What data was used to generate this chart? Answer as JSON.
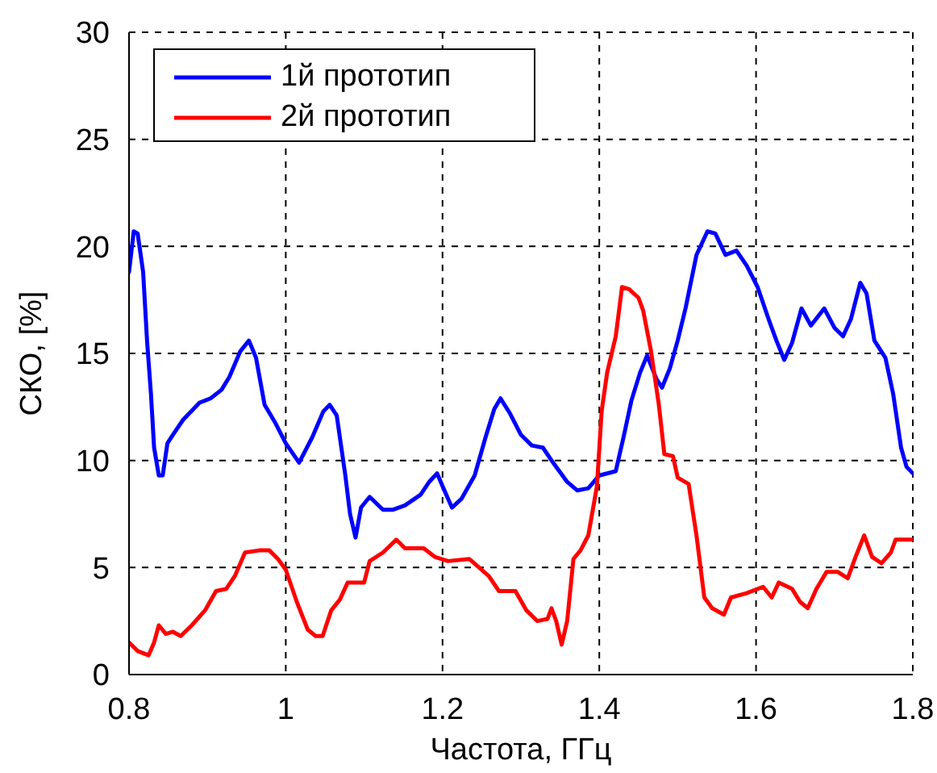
{
  "chart_data": {
    "type": "line",
    "xlabel": "Частота, ГГц",
    "ylabel": "СКО, [%]",
    "xlim": [
      0.8,
      1.8
    ],
    "ylim": [
      0,
      30
    ],
    "xticks": [
      0.8,
      1,
      1.2,
      1.4,
      1.6,
      1.8
    ],
    "yticks": [
      0,
      5,
      10,
      15,
      20,
      25,
      30
    ],
    "grid": true,
    "legend": "top left",
    "marker": "none",
    "line_style": "solid",
    "series": [
      {
        "name": "1й прототип",
        "color": "#0000ff",
        "x": [
          0.8,
          0.806,
          0.811,
          0.818,
          0.823,
          0.828,
          0.832,
          0.838,
          0.843,
          0.849,
          0.856,
          0.869,
          0.89,
          0.904,
          0.918,
          0.928,
          0.942,
          0.953,
          0.962,
          0.973,
          0.986,
          1.0,
          1.017,
          1.034,
          1.048,
          1.056,
          1.065,
          1.076,
          1.082,
          1.089,
          1.096,
          1.107,
          1.124,
          1.137,
          1.152,
          1.172,
          1.183,
          1.193,
          1.2,
          1.212,
          1.224,
          1.241,
          1.255,
          1.266,
          1.274,
          1.286,
          1.3,
          1.314,
          1.328,
          1.341,
          1.359,
          1.372,
          1.386,
          1.4,
          1.421,
          1.431,
          1.441,
          1.452,
          1.461,
          1.473,
          1.48,
          1.49,
          1.5,
          1.51,
          1.524,
          1.538,
          1.548,
          1.561,
          1.575,
          1.588,
          1.602,
          1.616,
          1.626,
          1.636,
          1.646,
          1.658,
          1.67,
          1.687,
          1.7,
          1.711,
          1.721,
          1.733,
          1.741,
          1.751,
          1.765,
          1.775,
          1.785,
          1.792,
          1.8
        ],
        "values": [
          18.8,
          20.7,
          20.6,
          18.8,
          15.6,
          13.1,
          10.6,
          9.3,
          9.3,
          10.8,
          11.2,
          11.9,
          12.7,
          12.9,
          13.3,
          13.9,
          15.1,
          15.6,
          14.8,
          12.6,
          11.8,
          10.8,
          9.9,
          11.1,
          12.3,
          12.6,
          12.1,
          9.3,
          7.5,
          6.4,
          7.8,
          8.3,
          7.7,
          7.7,
          7.9,
          8.4,
          9.0,
          9.4,
          8.8,
          7.8,
          8.2,
          9.3,
          11.1,
          12.4,
          12.9,
          12.2,
          11.2,
          10.7,
          10.6,
          9.9,
          9.0,
          8.6,
          8.7,
          9.3,
          9.5,
          11.1,
          12.8,
          14.1,
          14.9,
          13.8,
          13.4,
          14.3,
          15.6,
          17.1,
          19.6,
          20.7,
          20.6,
          19.6,
          19.8,
          19.1,
          18.1,
          16.6,
          15.6,
          14.7,
          15.5,
          17.1,
          16.3,
          17.1,
          16.2,
          15.8,
          16.6,
          18.3,
          17.8,
          15.6,
          14.8,
          13.1,
          10.6,
          9.7,
          9.4
        ]
      },
      {
        "name": "2й прототип",
        "color": "#ff0000",
        "x": [
          0.8,
          0.811,
          0.825,
          0.832,
          0.838,
          0.847,
          0.856,
          0.866,
          0.88,
          0.897,
          0.911,
          0.924,
          0.935,
          0.948,
          0.966,
          0.979,
          0.99,
          1.0,
          1.014,
          1.028,
          1.038,
          1.047,
          1.058,
          1.069,
          1.079,
          1.1,
          1.107,
          1.124,
          1.141,
          1.152,
          1.176,
          1.19,
          1.207,
          1.234,
          1.259,
          1.272,
          1.293,
          1.307,
          1.321,
          1.334,
          1.339,
          1.345,
          1.352,
          1.359,
          1.367,
          1.376,
          1.386,
          1.397,
          1.403,
          1.41,
          1.421,
          1.429,
          1.438,
          1.45,
          1.456,
          1.466,
          1.476,
          1.483,
          1.494,
          1.5,
          1.514,
          1.524,
          1.534,
          1.544,
          1.559,
          1.568,
          1.588,
          1.609,
          1.62,
          1.629,
          1.646,
          1.656,
          1.666,
          1.677,
          1.69,
          1.704,
          1.717,
          1.727,
          1.738,
          1.748,
          1.76,
          1.772,
          1.778,
          1.8
        ],
        "values": [
          1.5,
          1.1,
          0.9,
          1.5,
          2.3,
          1.9,
          2.0,
          1.8,
          2.3,
          3.0,
          3.9,
          4.0,
          4.6,
          5.7,
          5.8,
          5.8,
          5.4,
          4.9,
          3.4,
          2.1,
          1.8,
          1.8,
          3.0,
          3.5,
          4.3,
          4.3,
          5.3,
          5.7,
          6.3,
          5.9,
          5.9,
          5.5,
          5.3,
          5.4,
          4.6,
          3.9,
          3.9,
          3.0,
          2.5,
          2.6,
          3.1,
          2.5,
          1.4,
          2.5,
          5.4,
          5.8,
          6.5,
          8.8,
          12.3,
          14.1,
          15.8,
          18.1,
          18.0,
          17.6,
          17.0,
          15.1,
          12.6,
          10.3,
          10.2,
          9.2,
          8.9,
          6.5,
          3.6,
          3.1,
          2.8,
          3.6,
          3.8,
          4.1,
          3.6,
          4.3,
          4.0,
          3.4,
          3.1,
          4.0,
          4.8,
          4.8,
          4.5,
          5.5,
          6.5,
          5.5,
          5.2,
          5.7,
          6.3,
          6.3
        ]
      }
    ]
  }
}
